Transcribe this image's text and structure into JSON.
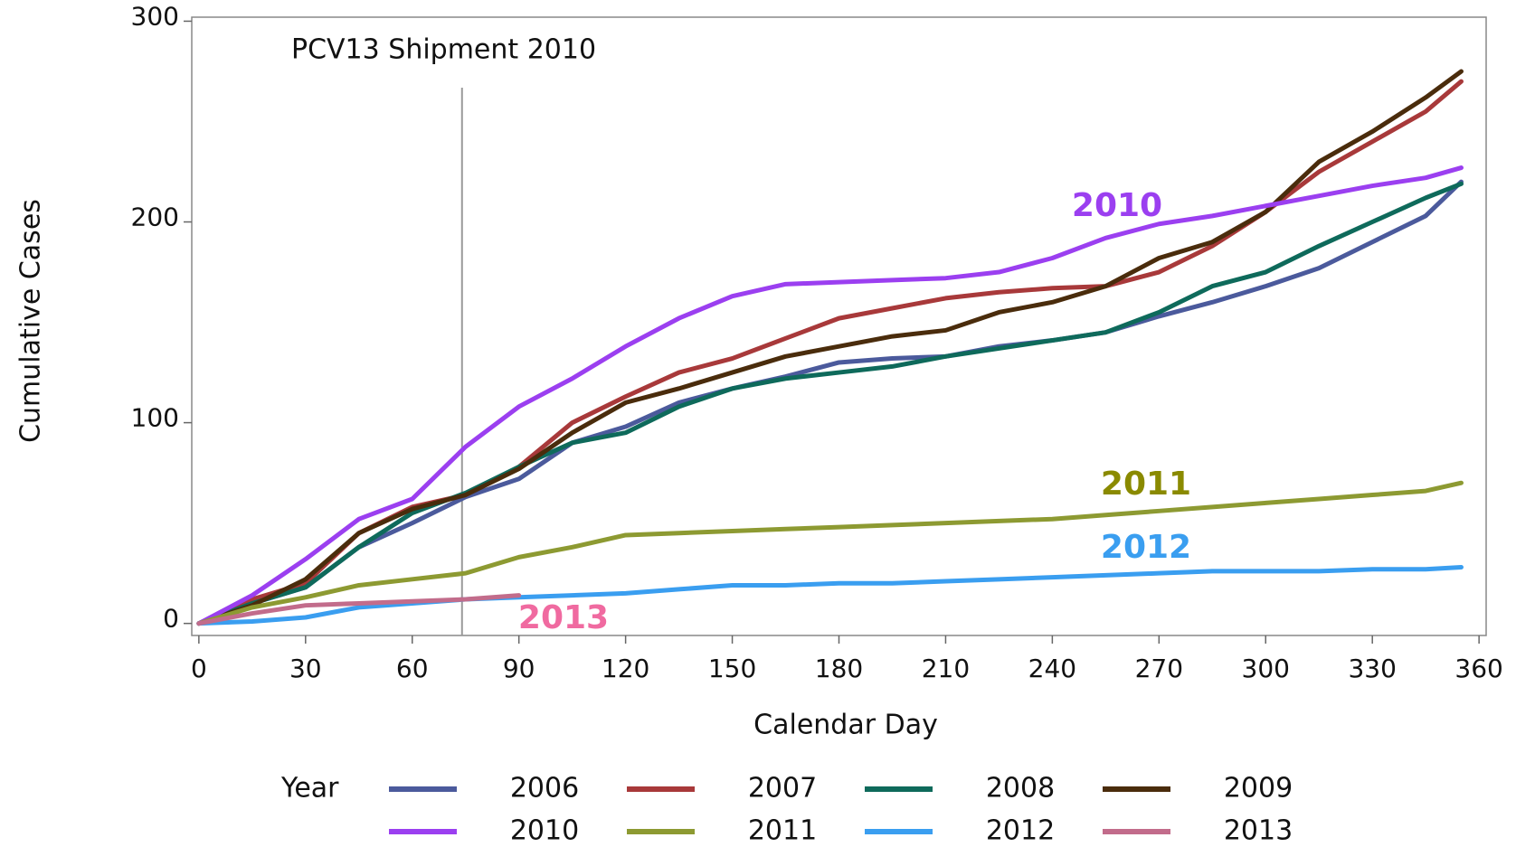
{
  "chart_data": {
    "type": "line",
    "x_label": "Calendar Day",
    "y_label": "Cumulative Cases",
    "xlim": [
      -2,
      362
    ],
    "ylim": [
      -6,
      302
    ],
    "xticks": [
      0,
      30,
      60,
      90,
      120,
      150,
      180,
      210,
      240,
      270,
      300,
      330,
      360
    ],
    "yticks": [
      0,
      100,
      200,
      300
    ],
    "reference_line": {
      "x": 74,
      "label": "PCV13 Shipment 2010",
      "color": "#999999"
    },
    "legend_title": "Year",
    "x": [
      0,
      15,
      30,
      45,
      60,
      75,
      90,
      105,
      120,
      135,
      150,
      165,
      180,
      195,
      210,
      225,
      240,
      255,
      270,
      285,
      300,
      315,
      330,
      345,
      355
    ],
    "series": [
      {
        "name": "2006",
        "color": "#4b5a9c",
        "values": [
          0,
          10,
          18,
          38,
          50,
          63,
          72,
          90,
          98,
          110,
          117,
          123,
          130,
          132,
          133,
          138,
          141,
          145,
          153,
          160,
          168,
          177,
          190,
          203,
          220
        ]
      },
      {
        "name": "2007",
        "color": "#a8393a",
        "values": [
          0,
          12,
          20,
          45,
          58,
          64,
          78,
          100,
          113,
          125,
          132,
          142,
          152,
          157,
          162,
          165,
          167,
          168,
          175,
          188,
          205,
          225,
          240,
          255,
          270
        ]
      },
      {
        "name": "2008",
        "color": "#0e6a5b",
        "values": [
          0,
          10,
          18,
          38,
          55,
          65,
          78,
          90,
          95,
          108,
          117,
          122,
          125,
          128,
          133,
          137,
          141,
          145,
          155,
          168,
          175,
          188,
          200,
          212,
          219
        ]
      },
      {
        "name": "2009",
        "color": "#4a2c0c",
        "values": [
          0,
          9,
          22,
          45,
          57,
          64,
          77,
          95,
          110,
          117,
          125,
          133,
          138,
          143,
          146,
          155,
          160,
          168,
          182,
          190,
          205,
          230,
          245,
          262,
          275
        ]
      },
      {
        "name": "2010",
        "color": "#9b3ff0",
        "values": [
          0,
          14,
          32,
          52,
          62,
          88,
          108,
          122,
          138,
          152,
          163,
          169,
          170,
          171,
          172,
          175,
          182,
          192,
          199,
          203,
          208,
          213,
          218,
          222,
          227
        ]
      },
      {
        "name": "2011",
        "color": "#8d9a32",
        "values": [
          0,
          8,
          13,
          19,
          22,
          25,
          33,
          38,
          44,
          45,
          46,
          47,
          48,
          49,
          50,
          51,
          52,
          54,
          56,
          58,
          60,
          62,
          64,
          66,
          70
        ]
      },
      {
        "name": "2012",
        "color": "#3a9ef0",
        "values": [
          0,
          1,
          3,
          8,
          10,
          12,
          13,
          14,
          15,
          17,
          19,
          19,
          20,
          20,
          21,
          22,
          23,
          24,
          25,
          26,
          26,
          26,
          27,
          27,
          28
        ]
      },
      {
        "name": "2013",
        "color": "#c26c8b",
        "values": [
          0,
          5,
          9,
          10,
          11,
          12,
          14,
          null,
          null,
          null,
          null,
          null,
          null,
          null,
          null,
          null,
          null,
          null,
          null,
          null,
          null,
          null,
          null,
          null,
          null
        ]
      }
    ],
    "annotations": [
      {
        "text": "2010",
        "color": "#9b3ff0"
      },
      {
        "text": "2011",
        "color": "#8a8a00"
      },
      {
        "text": "2012",
        "color": "#3a9ef0"
      },
      {
        "text": "2013",
        "color": "#f06aa0"
      }
    ]
  }
}
